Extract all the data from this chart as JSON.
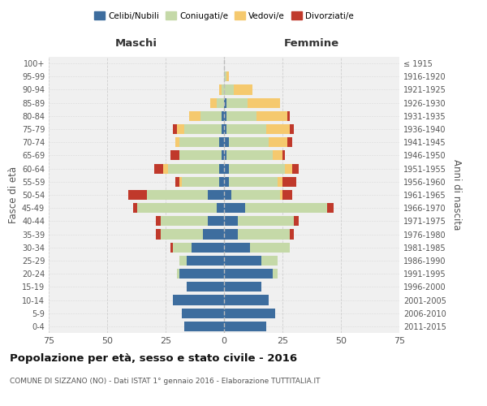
{
  "age_groups": [
    "0-4",
    "5-9",
    "10-14",
    "15-19",
    "20-24",
    "25-29",
    "30-34",
    "35-39",
    "40-44",
    "45-49",
    "50-54",
    "55-59",
    "60-64",
    "65-69",
    "70-74",
    "75-79",
    "80-84",
    "85-89",
    "90-94",
    "95-99",
    "100+"
  ],
  "birth_years": [
    "2011-2015",
    "2006-2010",
    "2001-2005",
    "1996-2000",
    "1991-1995",
    "1986-1990",
    "1981-1985",
    "1976-1980",
    "1971-1975",
    "1966-1970",
    "1961-1965",
    "1956-1960",
    "1951-1955",
    "1946-1950",
    "1941-1945",
    "1936-1940",
    "1931-1935",
    "1926-1930",
    "1921-1925",
    "1916-1920",
    "≤ 1915"
  ],
  "male": {
    "celibi": [
      17,
      18,
      22,
      16,
      19,
      16,
      14,
      9,
      7,
      3,
      7,
      2,
      2,
      1,
      2,
      1,
      1,
      0,
      0,
      0,
      0
    ],
    "coniugati": [
      0,
      0,
      0,
      0,
      1,
      3,
      8,
      18,
      20,
      34,
      26,
      16,
      22,
      18,
      17,
      16,
      9,
      3,
      1,
      0,
      0
    ],
    "vedovi": [
      0,
      0,
      0,
      0,
      0,
      0,
      0,
      0,
      0,
      0,
      0,
      1,
      2,
      0,
      2,
      3,
      5,
      3,
      1,
      0,
      0
    ],
    "divorziati": [
      0,
      0,
      0,
      0,
      0,
      0,
      1,
      2,
      2,
      2,
      8,
      2,
      4,
      4,
      0,
      2,
      0,
      0,
      0,
      0,
      0
    ]
  },
  "female": {
    "nubili": [
      18,
      22,
      19,
      16,
      21,
      16,
      11,
      6,
      6,
      9,
      3,
      2,
      2,
      1,
      2,
      1,
      1,
      1,
      0,
      0,
      0
    ],
    "coniugate": [
      0,
      0,
      0,
      0,
      2,
      7,
      17,
      22,
      24,
      35,
      21,
      21,
      24,
      20,
      17,
      17,
      13,
      9,
      4,
      1,
      0
    ],
    "vedove": [
      0,
      0,
      0,
      0,
      0,
      0,
      0,
      0,
      0,
      0,
      1,
      2,
      3,
      4,
      8,
      10,
      13,
      14,
      8,
      1,
      0
    ],
    "divorziate": [
      0,
      0,
      0,
      0,
      0,
      0,
      0,
      2,
      2,
      3,
      4,
      6,
      3,
      1,
      2,
      2,
      1,
      0,
      0,
      0,
      0
    ]
  },
  "colors": {
    "celibi": "#3d6d9e",
    "coniugati": "#c5d9a8",
    "vedovi": "#f5c96e",
    "divorziati": "#c0392b"
  },
  "xlim": 75,
  "title": "Popolazione per età, sesso e stato civile - 2016",
  "subtitle": "COMUNE DI SIZZANO (NO) - Dati ISTAT 1° gennaio 2016 - Elaborazione TUTTITALIA.IT",
  "ylabel_left": "Fasce di età",
  "ylabel_right": "Anni di nascita",
  "xlabel_left": "Maschi",
  "xlabel_right": "Femmine",
  "bg_color": "#f0f0f0",
  "grid_color": "#cccccc"
}
